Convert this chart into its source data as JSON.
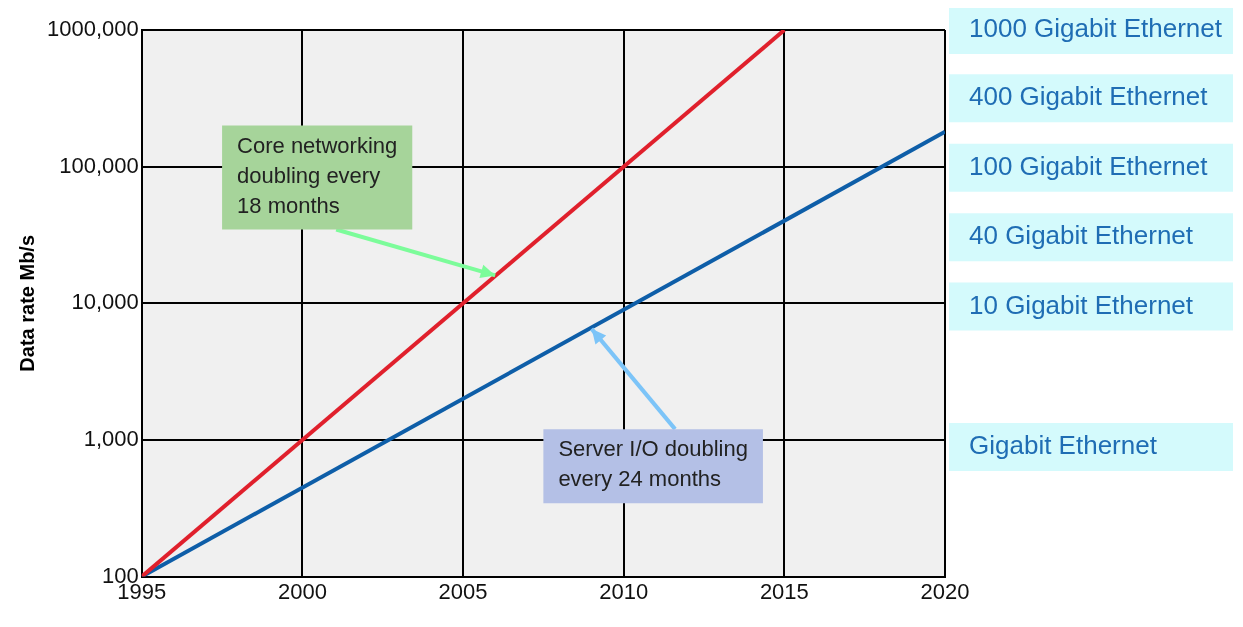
{
  "chart_data": {
    "type": "line",
    "ylabel": "Data rate Mb/s",
    "log": true,
    "grid": true,
    "marker": "none",
    "legend": false,
    "xlim": [
      1995,
      2020
    ],
    "xticks": [
      1995,
      2000,
      2005,
      2010,
      2015,
      2020
    ],
    "ylim": [
      100,
      1000000
    ],
    "yticks": [
      {
        "value": 100,
        "label": "100"
      },
      {
        "value": 1000,
        "label": "1,000"
      },
      {
        "value": 10000,
        "label": "10,000"
      },
      {
        "value": 100000,
        "label": "100,000"
      },
      {
        "value": 1000000,
        "label": "1000,000"
      }
    ],
    "series": [
      {
        "color": "#e0202c",
        "x": [
          1995,
          2015
        ],
        "values": [
          100,
          1000000
        ]
      },
      {
        "color": "#0e5ea8",
        "x": [
          1995,
          2020
        ],
        "values": [
          100,
          180000
        ]
      }
    ],
    "annotations": [
      "1000 Gigabit Ethernet",
      "400 Gigabit Ethernet",
      "100 Gigabit Ethernet",
      "40 Gigabit Ethernet",
      "10 Gigabit Ethernet",
      "Gigabit Ethernet",
      {
        "text": "Core networking\ndoubling every\n18 months",
        "x": 2006,
        "y": 16000
      },
      {
        "text": "Server I/O doubling\nevery 24 months",
        "x": 2009,
        "y": 6500
      }
    ]
  }
}
